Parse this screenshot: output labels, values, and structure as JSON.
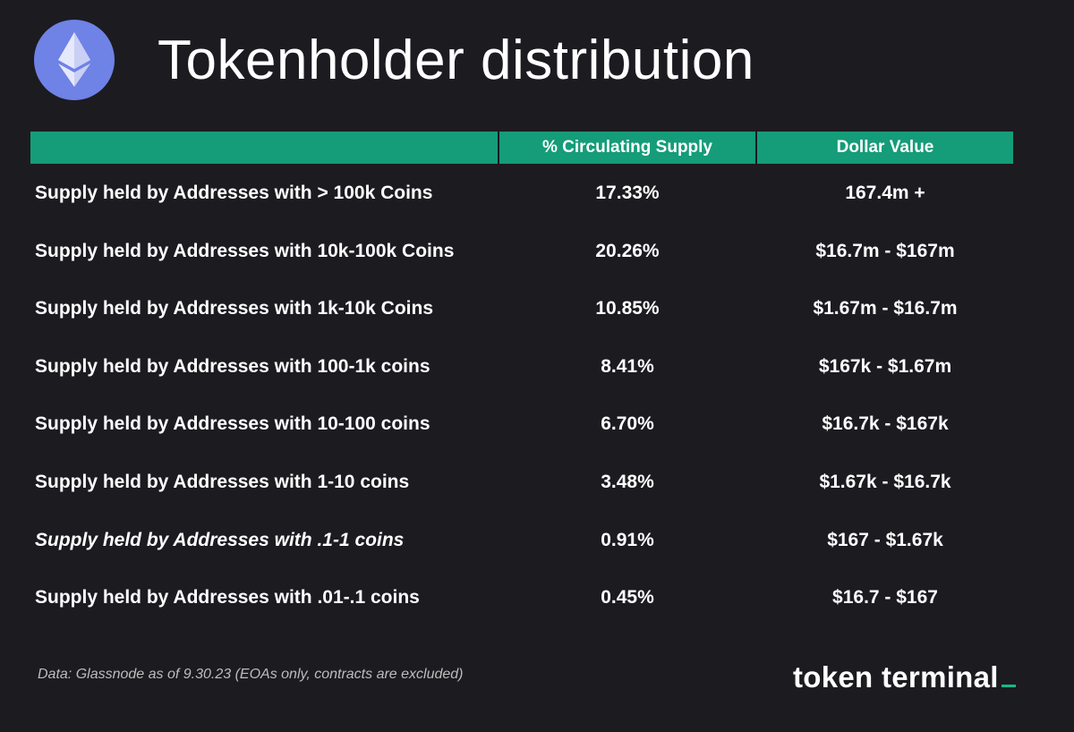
{
  "header": {
    "logo_icon": "ethereum-icon",
    "title": "Tokenholder distribution"
  },
  "table": {
    "columns": [
      "",
      "% Circulating Supply",
      "Dollar Value"
    ],
    "header_color": "#159c79",
    "rows": [
      {
        "label": "Supply held by Addresses with > 100k Coins",
        "pct": "17.33%",
        "usd": "167.4m +"
      },
      {
        "label": "Supply held by Addresses with 10k-100k Coins",
        "pct": "20.26%",
        "usd": "$16.7m - $167m"
      },
      {
        "label": "Supply held by Addresses with 1k-10k Coins",
        "pct": "10.85%",
        "usd": "$1.67m - $16.7m"
      },
      {
        "label": "Supply held by Addresses with 100-1k coins",
        "pct": "8.41%",
        "usd": "$167k - $1.67m"
      },
      {
        "label": "Supply held by Addresses with 10-100 coins",
        "pct": "6.70%",
        "usd": "$16.7k - $167k"
      },
      {
        "label": "Supply held by Addresses with 1-10 coins",
        "pct": "3.48%",
        "usd": "$1.67k - $16.7k"
      },
      {
        "label": "Supply held by Addresses with .1-1 coins",
        "pct": "0.91%",
        "usd": "$167 - $1.67k"
      },
      {
        "label": "Supply held by Addresses with .01-.1 coins",
        "pct": "0.45%",
        "usd": "$16.7 - $167"
      }
    ]
  },
  "footer": {
    "note": "Data: Glassnode as of 9.30.23 (EOAs only, contracts are excluded)",
    "brand": "token terminal",
    "brand_accent": "#18b88b"
  },
  "colors": {
    "background": "#1c1b20",
    "logo_circle": "#6f82e6"
  }
}
